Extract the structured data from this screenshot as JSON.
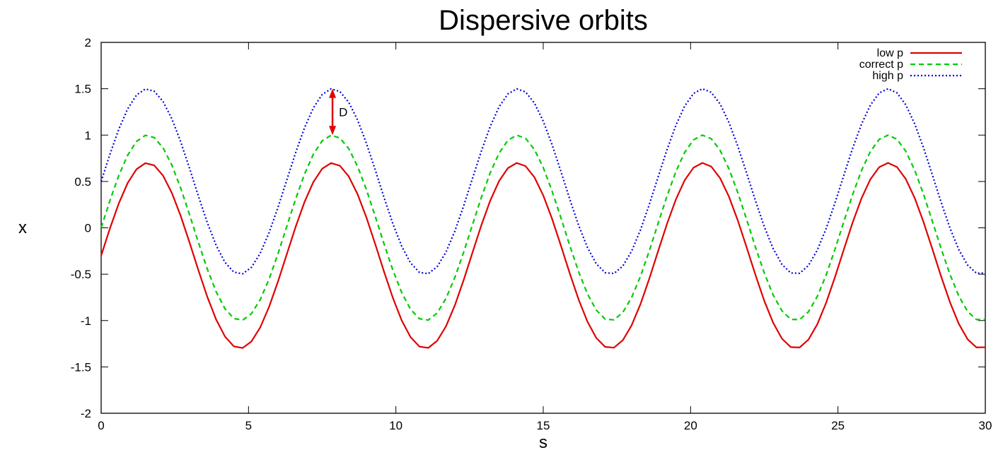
{
  "chart_data": {
    "type": "line",
    "title": "Dispersive orbits",
    "xlabel": "s",
    "ylabel": "x",
    "xlim": [
      0,
      30
    ],
    "ylim": [
      -2,
      2
    ],
    "xticks": [
      "0",
      "5",
      "10",
      "15",
      "20",
      "25",
      "30"
    ],
    "yticks": [
      "2",
      "1.5",
      "1",
      "0.5",
      "0",
      "-0.5",
      "-1",
      "-1.5",
      "-2"
    ],
    "grid": false,
    "legend_position": "top-right",
    "series": [
      {
        "name": "low p",
        "color": "#e00000",
        "dash": "solid",
        "formula": "y = sin(s) - 0.3",
        "x_range": [
          0,
          30
        ],
        "peak": 0.7,
        "trough": -1.3
      },
      {
        "name": "correct p",
        "color": "#00cc00",
        "dash": "dashed",
        "formula": "y = sin(s)",
        "x_range": [
          0,
          30
        ],
        "peak": 1.0,
        "trough": -1.0
      },
      {
        "name": "high p",
        "color": "#0000dd",
        "dash": "dotted",
        "formula": "y = sin(s) + 0.5",
        "x_range": [
          0,
          30
        ],
        "peak": 1.5,
        "trough": -0.5
      }
    ],
    "annotations": [
      {
        "label": "D",
        "type": "double-arrow",
        "x": 7.85,
        "y_from": 1.0,
        "y_to": 1.5,
        "color": "#e00000"
      }
    ]
  }
}
